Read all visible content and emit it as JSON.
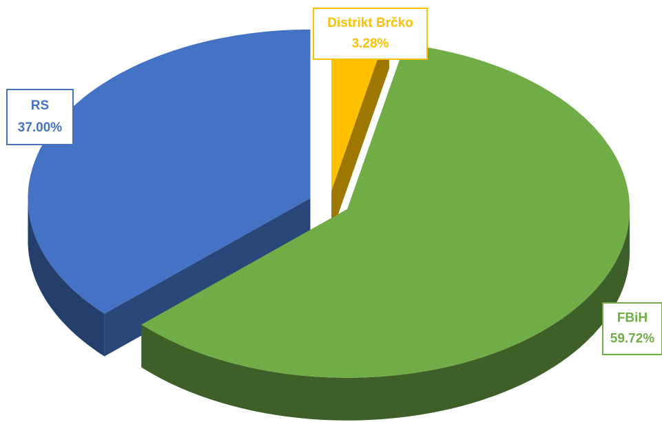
{
  "chart_data": {
    "type": "pie",
    "categories": [
      "Distrikt Brčko",
      "FBiH",
      "RS"
    ],
    "values": [
      3.28,
      59.72,
      37.0
    ],
    "value_labels": [
      "3.28%",
      "59.72%",
      "37.00%"
    ],
    "colors": [
      "#ffc000",
      "#70ad47",
      "#4472c4"
    ]
  }
}
